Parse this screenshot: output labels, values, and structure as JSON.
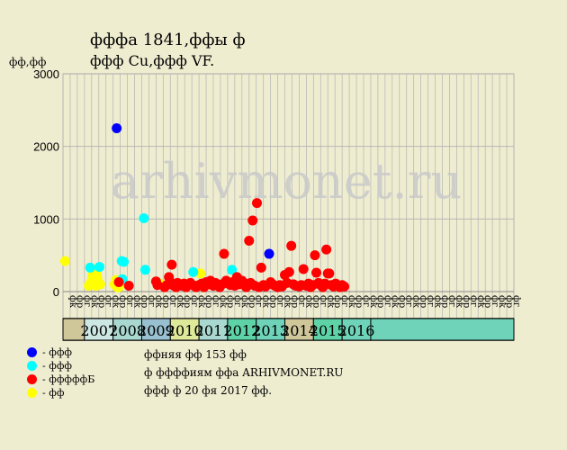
{
  "header": {
    "title": "фффа 1841,ффы ф",
    "subtitle": "ффф Cu,ффф VF.",
    "y_unit": "фф,фф"
  },
  "watermark": "arhivmonet.ru",
  "legend": [
    {
      "label": "- ффф",
      "color": "#0000ff"
    },
    {
      "label": "- ффф",
      "color": "#00ffff"
    },
    {
      "label": "- фффффБ",
      "color": "#ff0000"
    },
    {
      "label": "- фф",
      "color": "#ffff00"
    }
  ],
  "info": [
    "ффняя фф 153 фф",
    "ф ффффиям ффа ARHIVMONET.RU",
    "ффф ф 20 фя 2017 фф."
  ],
  "chart_data": {
    "type": "scatter",
    "ylim": [
      0,
      3000
    ],
    "y_ticks": [
      "0",
      "1000",
      "2000",
      "3000"
    ],
    "quarter_labels": [
      "фк",
      "фр",
      "фг",
      "фк",
      "фр",
      "фг",
      "фк",
      "фр",
      "фг",
      "фк",
      "фр",
      "фг",
      "фк",
      "фр",
      "фг",
      "фк",
      "фр",
      "фг",
      "фк",
      "фр",
      "фг",
      "фк",
      "фр",
      "фг",
      "фк",
      "фр",
      "фг",
      "фк",
      "фр",
      "фг",
      "фк",
      "фр",
      "фг",
      "фк",
      "фр",
      "фг",
      "фк",
      "фр",
      "фг",
      "фк",
      "фр",
      "фг",
      "фк",
      "фр",
      "фг",
      "фк",
      "фр",
      "фг",
      "фк",
      "фр",
      "фг",
      "фк",
      "фр",
      "фг",
      "фк",
      "фр",
      "фг",
      "фк",
      "фр",
      "фг",
      "фк",
      "фр",
      "фг"
    ],
    "years": [
      {
        "label": "2007",
        "start": 3,
        "span": 4,
        "color": "#cde8e3"
      },
      {
        "label": "2008",
        "start": 7,
        "span": 4,
        "color": "#a8d8cf"
      },
      {
        "label": "2009",
        "start": 11,
        "span": 4,
        "color": "#99c0d0"
      },
      {
        "label": "2010",
        "start": 15,
        "span": 4,
        "color": "#dfe99a"
      },
      {
        "label": "2011",
        "start": 19,
        "span": 4,
        "color": "#a8d8cf"
      },
      {
        "label": "2012",
        "start": 23,
        "span": 4,
        "color": "#5fd3a8"
      },
      {
        "label": "2013",
        "start": 27,
        "span": 4,
        "color": "#6ed3b8"
      },
      {
        "label": "2014",
        "start": 31,
        "span": 4,
        "color": "#cfc69a"
      },
      {
        "label": "2015",
        "start": 35,
        "span": 4,
        "color": "#5fd3a8"
      },
      {
        "label": "2016",
        "start": 39,
        "span": 4,
        "color": "#6ed3b8"
      }
    ],
    "series": [
      {
        "name": "blue",
        "color": "#0000ff",
        "points": [
          [
            7.5,
            2250
          ],
          [
            28.8,
            520
          ]
        ]
      },
      {
        "name": "cyan",
        "color": "#00ffff",
        "points": [
          [
            3.8,
            330
          ],
          [
            5.1,
            340
          ],
          [
            8.2,
            420
          ],
          [
            8.5,
            410
          ],
          [
            8.3,
            170
          ],
          [
            11.3,
            1010
          ],
          [
            11.5,
            300
          ],
          [
            18.2,
            270
          ],
          [
            23.6,
            300
          ]
        ]
      },
      {
        "name": "yellow",
        "color": "#ffff00",
        "points": [
          [
            0.3,
            420
          ],
          [
            3.6,
            80
          ],
          [
            3.9,
            130
          ],
          [
            4.1,
            200
          ],
          [
            4.2,
            250
          ],
          [
            4.3,
            100
          ],
          [
            4.4,
            300
          ],
          [
            4.5,
            150
          ],
          [
            4.6,
            80
          ],
          [
            4.7,
            230
          ],
          [
            4.8,
            180
          ],
          [
            4.9,
            320
          ],
          [
            5.2,
            100
          ],
          [
            7.2,
            100
          ],
          [
            7.4,
            160
          ],
          [
            7.6,
            60
          ],
          [
            7.8,
            60
          ],
          [
            13.5,
            110
          ],
          [
            19.2,
            250
          ]
        ]
      },
      {
        "name": "red",
        "color": "#ff0000",
        "points": [
          [
            7.8,
            130
          ],
          [
            9.2,
            80
          ],
          [
            13.0,
            140
          ],
          [
            13.2,
            90
          ],
          [
            14.2,
            60
          ],
          [
            14.5,
            90
          ],
          [
            14.8,
            200
          ],
          [
            15.0,
            130
          ],
          [
            15.2,
            370
          ],
          [
            15.5,
            80
          ],
          [
            15.8,
            60
          ],
          [
            16.0,
            120
          ],
          [
            16.3,
            100
          ],
          [
            16.6,
            80
          ],
          [
            16.9,
            110
          ],
          [
            17.2,
            60
          ],
          [
            17.5,
            90
          ],
          [
            17.8,
            120
          ],
          [
            18.3,
            80
          ],
          [
            18.6,
            60
          ],
          [
            19.0,
            90
          ],
          [
            19.4,
            110
          ],
          [
            19.7,
            60
          ],
          [
            20.0,
            130
          ],
          [
            20.3,
            100
          ],
          [
            20.6,
            150
          ],
          [
            21.0,
            80
          ],
          [
            21.3,
            120
          ],
          [
            21.6,
            90
          ],
          [
            21.9,
            60
          ],
          [
            22.2,
            100
          ],
          [
            22.5,
            520
          ],
          [
            22.8,
            150
          ],
          [
            23.1,
            110
          ],
          [
            23.4,
            90
          ],
          [
            23.7,
            130
          ],
          [
            24.0,
            80
          ],
          [
            24.3,
            200
          ],
          [
            24.6,
            100
          ],
          [
            25.0,
            150
          ],
          [
            25.3,
            120
          ],
          [
            25.6,
            60
          ],
          [
            25.9,
            90
          ],
          [
            26.0,
            700
          ],
          [
            26.2,
            120
          ],
          [
            26.5,
            980
          ],
          [
            26.8,
            80
          ],
          [
            27.1,
            1220
          ],
          [
            27.4,
            60
          ],
          [
            27.7,
            330
          ],
          [
            28.0,
            90
          ],
          [
            28.3,
            70
          ],
          [
            29.0,
            130
          ],
          [
            29.3,
            100
          ],
          [
            29.6,
            80
          ],
          [
            30.0,
            60
          ],
          [
            30.3,
            90
          ],
          [
            30.6,
            70
          ],
          [
            31.0,
            230
          ],
          [
            31.3,
            120
          ],
          [
            31.6,
            270
          ],
          [
            31.9,
            630
          ],
          [
            32.2,
            100
          ],
          [
            32.5,
            80
          ],
          [
            33.0,
            70
          ],
          [
            33.3,
            90
          ],
          [
            33.6,
            310
          ],
          [
            34.0,
            80
          ],
          [
            34.3,
            110
          ],
          [
            34.6,
            60
          ],
          [
            34.9,
            90
          ],
          [
            35.2,
            500
          ],
          [
            35.4,
            260
          ],
          [
            35.7,
            120
          ],
          [
            36.0,
            90
          ],
          [
            36.3,
            60
          ],
          [
            36.6,
            110
          ],
          [
            36.8,
            580
          ],
          [
            37.0,
            250
          ],
          [
            37.2,
            250
          ],
          [
            37.5,
            90
          ],
          [
            37.8,
            70
          ],
          [
            38.1,
            110
          ],
          [
            38.4,
            80
          ],
          [
            38.7,
            60
          ],
          [
            39.0,
            90
          ],
          [
            39.3,
            70
          ]
        ]
      }
    ]
  }
}
